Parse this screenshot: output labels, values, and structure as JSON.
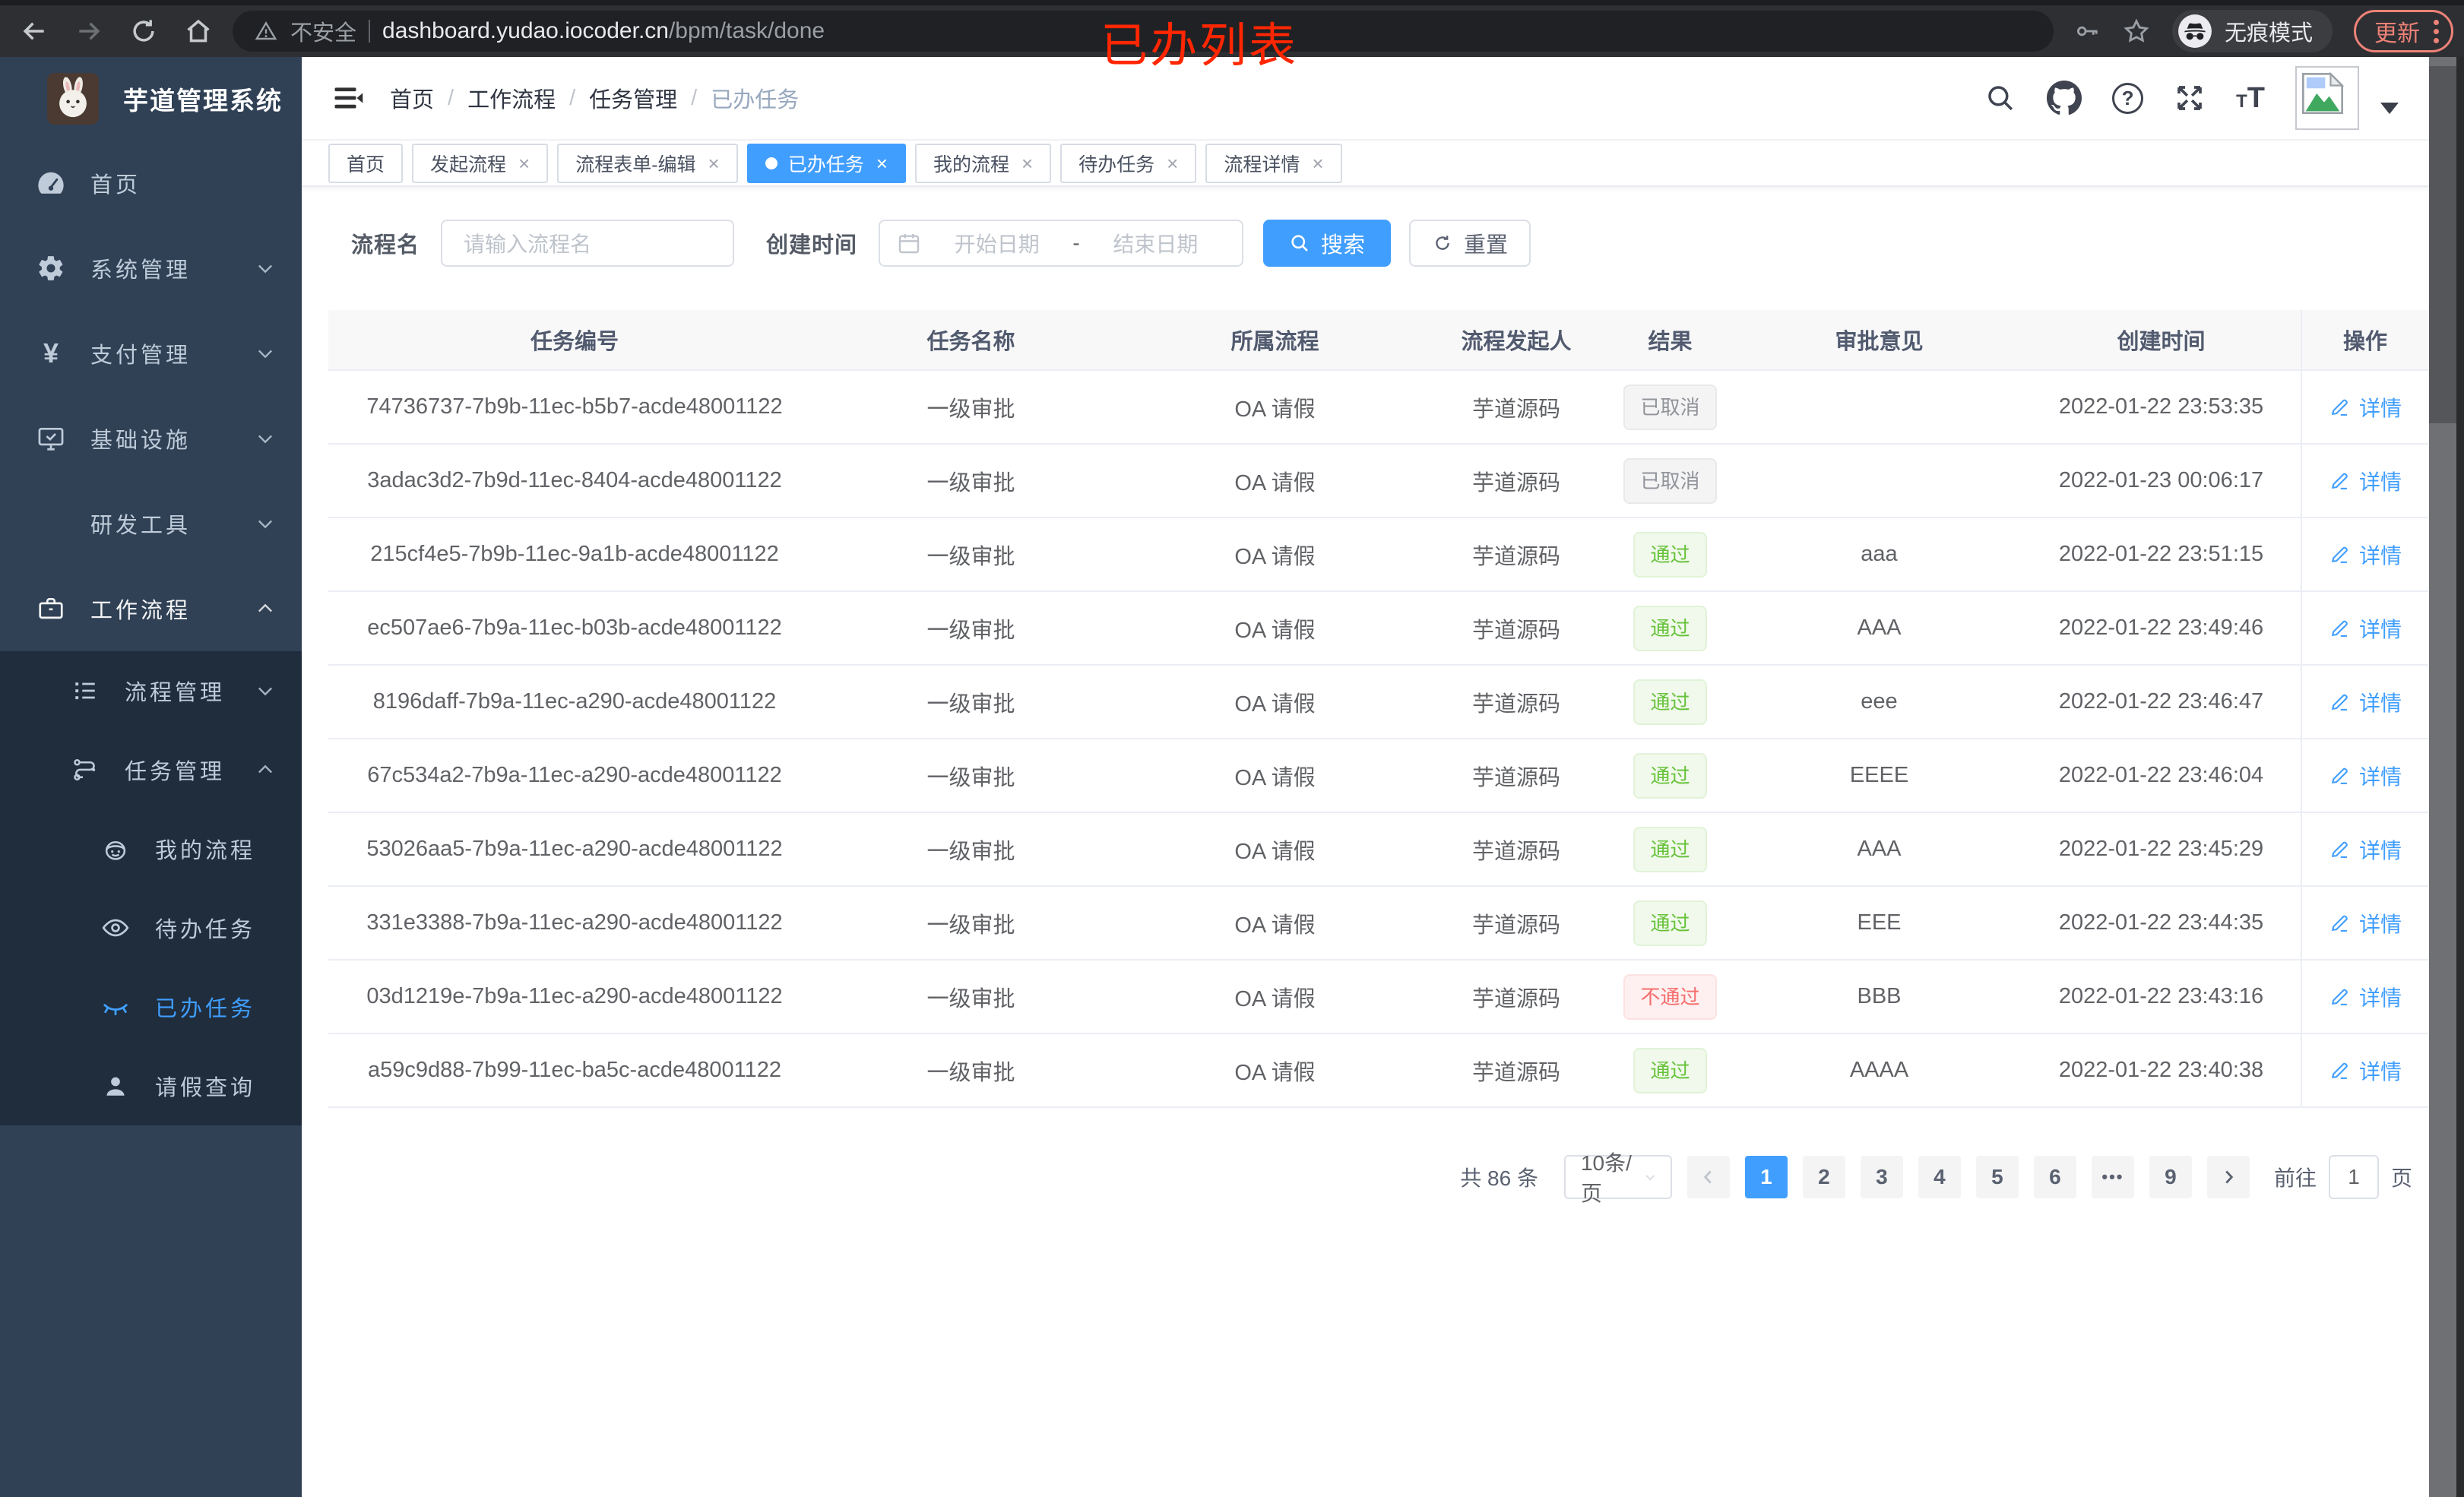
{
  "browser": {
    "security_label": "不安全",
    "url_host": "dashboard.yudao.iocoder.cn",
    "url_path": "/bpm/task/done",
    "incognito_label": "无痕模式",
    "update_label": "更新",
    "overlay_title": "已办列表"
  },
  "sidebar": {
    "app_title": "芋道管理系统",
    "items": [
      {
        "key": "home",
        "label": "首页",
        "icon": "dashboard-icon",
        "level": 1
      },
      {
        "key": "system",
        "label": "系统管理",
        "icon": "gear-icon",
        "level": 1,
        "expand": "down"
      },
      {
        "key": "payment",
        "label": "支付管理",
        "icon": "yen-icon",
        "level": 1,
        "expand": "down"
      },
      {
        "key": "infra",
        "label": "基础设施",
        "icon": "monitor-icon",
        "level": 1,
        "expand": "down"
      },
      {
        "key": "devtools",
        "label": "研发工具",
        "icon": "toolbox-icon",
        "level": 1,
        "expand": "down"
      },
      {
        "key": "workflow",
        "label": "工作流程",
        "icon": "briefcase-icon",
        "level": 1,
        "expand": "up",
        "bright": true
      },
      {
        "key": "process-mgmt",
        "label": "流程管理",
        "icon": "tree-list-icon",
        "level": 2,
        "group": "sub",
        "expand": "down"
      },
      {
        "key": "task-mgmt",
        "label": "任务管理",
        "icon": "flow-icon",
        "level": 2,
        "group": "sub",
        "expand": "up"
      },
      {
        "key": "my-process",
        "label": "我的流程",
        "icon": "robot-icon",
        "level": 3,
        "group": "sub"
      },
      {
        "key": "todo-task",
        "label": "待办任务",
        "icon": "eye-open-icon",
        "level": 3,
        "group": "sub"
      },
      {
        "key": "done-task",
        "label": "已办任务",
        "icon": "eye-closed-icon",
        "level": 3,
        "group": "sub",
        "active": true
      },
      {
        "key": "leave-query",
        "label": "请假查询",
        "icon": "user-icon",
        "level": 3,
        "group": "sub"
      }
    ]
  },
  "breadcrumb": [
    "首页",
    "工作流程",
    "任务管理",
    "已办任务"
  ],
  "tabs": [
    {
      "label": "首页",
      "closable": false
    },
    {
      "label": "发起流程",
      "closable": true
    },
    {
      "label": "流程表单-编辑",
      "closable": true
    },
    {
      "label": "已办任务",
      "closable": true,
      "active": true
    },
    {
      "label": "我的流程",
      "closable": true
    },
    {
      "label": "待办任务",
      "closable": true
    },
    {
      "label": "流程详情",
      "closable": true
    }
  ],
  "filters": {
    "name_label": "流程名",
    "name_placeholder": "请输入流程名",
    "time_label": "创建时间",
    "start_placeholder": "开始日期",
    "range_separator": "-",
    "end_placeholder": "结束日期",
    "search_label": "搜索",
    "reset_label": "重置"
  },
  "table": {
    "columns": [
      "任务编号",
      "任务名称",
      "所属流程",
      "流程发起人",
      "结果",
      "审批意见",
      "创建时间",
      "操作"
    ],
    "detail_label": "详情",
    "rows": [
      {
        "id": "74736737-7b9b-11ec-b5b7-acde48001122",
        "name": "一级审批",
        "process": "OA 请假",
        "initiator": "芋道源码",
        "result": "已取消",
        "result_type": "info",
        "comment": "",
        "time": "2022-01-22 23:53:35"
      },
      {
        "id": "3adac3d2-7b9d-11ec-8404-acde48001122",
        "name": "一级审批",
        "process": "OA 请假",
        "initiator": "芋道源码",
        "result": "已取消",
        "result_type": "info",
        "comment": "",
        "time": "2022-01-23 00:06:17"
      },
      {
        "id": "215cf4e5-7b9b-11ec-9a1b-acde48001122",
        "name": "一级审批",
        "process": "OA 请假",
        "initiator": "芋道源码",
        "result": "通过",
        "result_type": "success",
        "comment": "aaa",
        "time": "2022-01-22 23:51:15"
      },
      {
        "id": "ec507ae6-7b9a-11ec-b03b-acde48001122",
        "name": "一级审批",
        "process": "OA 请假",
        "initiator": "芋道源码",
        "result": "通过",
        "result_type": "success",
        "comment": "AAA",
        "time": "2022-01-22 23:49:46"
      },
      {
        "id": "8196daff-7b9a-11ec-a290-acde48001122",
        "name": "一级审批",
        "process": "OA 请假",
        "initiator": "芋道源码",
        "result": "通过",
        "result_type": "success",
        "comment": "eee",
        "time": "2022-01-22 23:46:47"
      },
      {
        "id": "67c534a2-7b9a-11ec-a290-acde48001122",
        "name": "一级审批",
        "process": "OA 请假",
        "initiator": "芋道源码",
        "result": "通过",
        "result_type": "success",
        "comment": "EEEE",
        "time": "2022-01-22 23:46:04"
      },
      {
        "id": "53026aa5-7b9a-11ec-a290-acde48001122",
        "name": "一级审批",
        "process": "OA 请假",
        "initiator": "芋道源码",
        "result": "通过",
        "result_type": "success",
        "comment": "AAA",
        "time": "2022-01-22 23:45:29"
      },
      {
        "id": "331e3388-7b9a-11ec-a290-acde48001122",
        "name": "一级审批",
        "process": "OA 请假",
        "initiator": "芋道源码",
        "result": "通过",
        "result_type": "success",
        "comment": "EEE",
        "time": "2022-01-22 23:44:35"
      },
      {
        "id": "03d1219e-7b9a-11ec-a290-acde48001122",
        "name": "一级审批",
        "process": "OA 请假",
        "initiator": "芋道源码",
        "result": "不通过",
        "result_type": "danger",
        "comment": "BBB",
        "time": "2022-01-22 23:43:16"
      },
      {
        "id": "a59c9d88-7b99-11ec-ba5c-acde48001122",
        "name": "一级审批",
        "process": "OA 请假",
        "initiator": "芋道源码",
        "result": "通过",
        "result_type": "success",
        "comment": "AAAA",
        "time": "2022-01-22 23:40:38"
      }
    ]
  },
  "pagination": {
    "total_label": "共 86 条",
    "page_size_label": "10条/页",
    "pages": [
      {
        "label": "1",
        "active": true
      },
      {
        "label": "2"
      },
      {
        "label": "3"
      },
      {
        "label": "4"
      },
      {
        "label": "5"
      },
      {
        "label": "6"
      },
      {
        "label": "•••",
        "ellipsis": true
      },
      {
        "label": "9"
      }
    ],
    "goto_label": "前往",
    "goto_value": "1",
    "page_unit_label": "页"
  },
  "colors": {
    "primary": "#409eff",
    "success": "#67c23a",
    "danger": "#f56c6c",
    "info": "#909399",
    "sidebar_bg": "#304156",
    "sidebar_sub_bg": "#1f2d3d",
    "annotation_red": "#ff2600"
  }
}
